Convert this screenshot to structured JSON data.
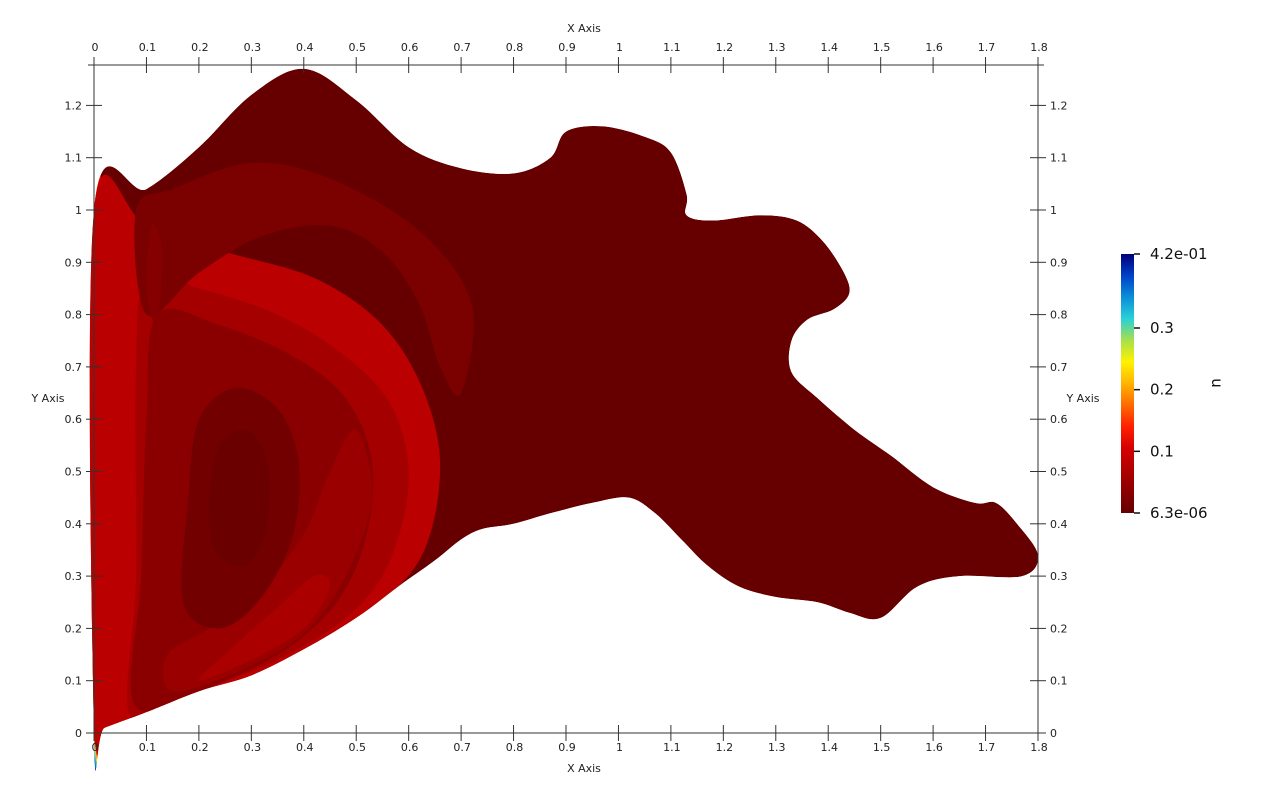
{
  "chart_data": {
    "type": "heatmap",
    "description_free": true,
    "x_axis": {
      "title": "X Axis",
      "range": [
        0,
        1.8
      ],
      "ticks": [
        {
          "v": 0,
          "label": "0"
        },
        {
          "v": 0.1,
          "label": "0.1"
        },
        {
          "v": 0.2,
          "label": "0.2"
        },
        {
          "v": 0.3,
          "label": "0.3"
        },
        {
          "v": 0.4,
          "label": "0.4"
        },
        {
          "v": 0.5,
          "label": "0.5"
        },
        {
          "v": 0.6,
          "label": "0.6"
        },
        {
          "v": 0.7,
          "label": "0.7"
        },
        {
          "v": 0.8,
          "label": "0.8"
        },
        {
          "v": 0.9,
          "label": "0.9"
        },
        {
          "v": 1.0,
          "label": "1"
        },
        {
          "v": 1.1,
          "label": "1.1"
        },
        {
          "v": 1.2,
          "label": "1.2"
        },
        {
          "v": 1.3,
          "label": "1.3"
        },
        {
          "v": 1.4,
          "label": "1.4"
        },
        {
          "v": 1.5,
          "label": "1.5"
        },
        {
          "v": 1.6,
          "label": "1.6"
        },
        {
          "v": 1.7,
          "label": "1.7"
        },
        {
          "v": 1.8,
          "label": "1.8"
        }
      ]
    },
    "y_axis": {
      "title": "Y Axis",
      "range": [
        0,
        1.27
      ],
      "ticks": [
        {
          "v": 0,
          "label": "0"
        },
        {
          "v": 0.1,
          "label": "0.1"
        },
        {
          "v": 0.2,
          "label": "0.2"
        },
        {
          "v": 0.3,
          "label": "0.3"
        },
        {
          "v": 0.4,
          "label": "0.4"
        },
        {
          "v": 0.5,
          "label": "0.5"
        },
        {
          "v": 0.6,
          "label": "0.6"
        },
        {
          "v": 0.7,
          "label": "0.7"
        },
        {
          "v": 0.8,
          "label": "0.8"
        },
        {
          "v": 0.9,
          "label": "0.9"
        },
        {
          "v": 1.0,
          "label": "1"
        },
        {
          "v": 1.1,
          "label": "1.1"
        },
        {
          "v": 1.2,
          "label": "1.2"
        }
      ]
    },
    "colorbar": {
      "title": "u",
      "min": 6.3e-06,
      "max": 0.42,
      "labels": [
        {
          "v": 0.42,
          "label": "4.2e-01"
        },
        {
          "v": 0.3,
          "label": "0.3"
        },
        {
          "v": 0.2,
          "label": "0.2"
        },
        {
          "v": 0.1,
          "label": "0.1"
        },
        {
          "v": 6.3e-06,
          "label": "6.3e-06"
        }
      ],
      "colors_low_to_high": [
        "#660000",
        "#8a0000",
        "#b00000",
        "#d40000",
        "#ff2000",
        "#ff6a00",
        "#ffb300",
        "#fff200",
        "#a6e04a",
        "#29d1d6",
        "#0a8fd8",
        "#0040c8",
        "#00007a"
      ]
    },
    "domain_boundary": [
      [
        0.0,
        1.0
      ],
      [
        0.1,
        1.04
      ],
      [
        0.2,
        1.12
      ],
      [
        0.3,
        1.22
      ],
      [
        0.4,
        1.27
      ],
      [
        0.5,
        1.21
      ],
      [
        0.6,
        1.12
      ],
      [
        0.7,
        1.08
      ],
      [
        0.8,
        1.07
      ],
      [
        0.87,
        1.1
      ],
      [
        0.9,
        1.15
      ],
      [
        0.97,
        1.16
      ],
      [
        1.05,
        1.14
      ],
      [
        1.1,
        1.11
      ],
      [
        1.13,
        1.03
      ],
      [
        1.13,
        0.99
      ],
      [
        1.18,
        0.98
      ],
      [
        1.27,
        0.99
      ],
      [
        1.34,
        0.98
      ],
      [
        1.39,
        0.94
      ],
      [
        1.43,
        0.88
      ],
      [
        1.44,
        0.84
      ],
      [
        1.41,
        0.81
      ],
      [
        1.36,
        0.79
      ],
      [
        1.33,
        0.75
      ],
      [
        1.33,
        0.69
      ],
      [
        1.38,
        0.64
      ],
      [
        1.45,
        0.58
      ],
      [
        1.52,
        0.53
      ],
      [
        1.6,
        0.47
      ],
      [
        1.68,
        0.44
      ],
      [
        1.72,
        0.44
      ],
      [
        1.76,
        0.4
      ],
      [
        1.8,
        0.34
      ],
      [
        1.77,
        0.3
      ],
      [
        1.65,
        0.3
      ],
      [
        1.57,
        0.28
      ],
      [
        1.5,
        0.22
      ],
      [
        1.44,
        0.23
      ],
      [
        1.38,
        0.25
      ],
      [
        1.3,
        0.26
      ],
      [
        1.23,
        0.28
      ],
      [
        1.17,
        0.32
      ],
      [
        1.12,
        0.37
      ],
      [
        1.07,
        0.42
      ],
      [
        1.02,
        0.45
      ],
      [
        0.95,
        0.44
      ],
      [
        0.87,
        0.42
      ],
      [
        0.8,
        0.4
      ],
      [
        0.74,
        0.39
      ],
      [
        0.7,
        0.37
      ],
      [
        0.65,
        0.33
      ],
      [
        0.58,
        0.28
      ],
      [
        0.5,
        0.22
      ],
      [
        0.4,
        0.16
      ],
      [
        0.3,
        0.11
      ],
      [
        0.2,
        0.08
      ],
      [
        0.1,
        0.04
      ],
      [
        0.02,
        0.01
      ],
      [
        0.0,
        0.0
      ]
    ],
    "field_levels": [
      {
        "value": 0.4,
        "region": [
          [
            0.0,
            0.0
          ],
          [
            0.01,
            0.0
          ],
          [
            0.015,
            0.3
          ],
          [
            0.012,
            0.6
          ],
          [
            0.008,
            0.9
          ],
          [
            0.004,
            1.0
          ],
          [
            0.0,
            1.0
          ]
        ]
      },
      {
        "value": 0.33,
        "region": [
          [
            0.0,
            0.0
          ],
          [
            0.02,
            0.02
          ],
          [
            0.022,
            0.3
          ],
          [
            0.02,
            0.6
          ],
          [
            0.012,
            0.9
          ],
          [
            0.006,
            1.0
          ],
          [
            0.0,
            1.0
          ]
        ]
      },
      {
        "value": 0.25,
        "region": [
          [
            0.0,
            0.0
          ],
          [
            0.04,
            0.02
          ],
          [
            0.038,
            0.3
          ],
          [
            0.034,
            0.6
          ],
          [
            0.025,
            0.9
          ],
          [
            0.012,
            0.995
          ],
          [
            0.0,
            1.0
          ]
        ]
      },
      {
        "value": 0.18,
        "region": [
          [
            0.0,
            0.0
          ],
          [
            0.06,
            0.02
          ],
          [
            0.055,
            0.3
          ],
          [
            0.05,
            0.6
          ],
          [
            0.04,
            0.9
          ],
          [
            0.02,
            0.99
          ],
          [
            0.0,
            1.0
          ]
        ]
      },
      {
        "value": 0.12,
        "region": [
          [
            0.0,
            0.0
          ],
          [
            0.08,
            0.03
          ],
          [
            0.075,
            0.3
          ],
          [
            0.07,
            0.6
          ],
          [
            0.055,
            0.88
          ],
          [
            0.03,
            0.99
          ],
          [
            0.0,
            1.0
          ]
        ]
      },
      {
        "value": 0.08,
        "region": [
          [
            0.0,
            0.0
          ],
          [
            0.1,
            0.04
          ],
          [
            0.3,
            0.11
          ],
          [
            0.5,
            0.22
          ],
          [
            0.62,
            0.33
          ],
          [
            0.66,
            0.5
          ],
          [
            0.63,
            0.65
          ],
          [
            0.55,
            0.78
          ],
          [
            0.42,
            0.87
          ],
          [
            0.25,
            0.92
          ],
          [
            0.1,
            0.97
          ],
          [
            0.0,
            1.0
          ]
        ]
      },
      {
        "value": 0.06,
        "region": [
          [
            0.07,
            0.03
          ],
          [
            0.2,
            0.08
          ],
          [
            0.35,
            0.14
          ],
          [
            0.48,
            0.22
          ],
          [
            0.56,
            0.32
          ],
          [
            0.6,
            0.48
          ],
          [
            0.57,
            0.62
          ],
          [
            0.48,
            0.72
          ],
          [
            0.35,
            0.8
          ],
          [
            0.2,
            0.85
          ],
          [
            0.1,
            0.87
          ],
          [
            0.08,
            0.7
          ],
          [
            0.08,
            0.3
          ]
        ]
      },
      {
        "value": 0.035,
        "region": [
          [
            0.08,
            0.05
          ],
          [
            0.25,
            0.1
          ],
          [
            0.38,
            0.17
          ],
          [
            0.47,
            0.26
          ],
          [
            0.52,
            0.38
          ],
          [
            0.53,
            0.52
          ],
          [
            0.48,
            0.64
          ],
          [
            0.38,
            0.72
          ],
          [
            0.24,
            0.78
          ],
          [
            0.12,
            0.8
          ],
          [
            0.1,
            0.6
          ],
          [
            0.09,
            0.3
          ]
        ]
      },
      {
        "value": 0.05,
        "region": [
          [
            0.15,
            0.08
          ],
          [
            0.28,
            0.12
          ],
          [
            0.4,
            0.19
          ],
          [
            0.48,
            0.3
          ],
          [
            0.53,
            0.45
          ],
          [
            0.5,
            0.58
          ],
          [
            0.45,
            0.5
          ],
          [
            0.4,
            0.38
          ],
          [
            0.32,
            0.28
          ],
          [
            0.22,
            0.2
          ],
          [
            0.14,
            0.15
          ]
        ]
      },
      {
        "value": 0.065,
        "region": [
          [
            0.2,
            0.1
          ],
          [
            0.3,
            0.14
          ],
          [
            0.4,
            0.2
          ],
          [
            0.45,
            0.28
          ],
          [
            0.42,
            0.3
          ],
          [
            0.35,
            0.24
          ],
          [
            0.26,
            0.16
          ]
        ]
      },
      {
        "value": 0.012,
        "region": [
          [
            0.17,
            0.25
          ],
          [
            0.24,
            0.2
          ],
          [
            0.32,
            0.26
          ],
          [
            0.38,
            0.38
          ],
          [
            0.39,
            0.52
          ],
          [
            0.35,
            0.62
          ],
          [
            0.27,
            0.66
          ],
          [
            0.2,
            0.6
          ],
          [
            0.18,
            0.45
          ]
        ]
      },
      {
        "value": 0.004,
        "region": [
          [
            0.23,
            0.35
          ],
          [
            0.29,
            0.32
          ],
          [
            0.33,
            0.4
          ],
          [
            0.33,
            0.52
          ],
          [
            0.29,
            0.58
          ],
          [
            0.24,
            0.55
          ],
          [
            0.22,
            0.45
          ]
        ]
      },
      {
        "value": 0.02,
        "region": [
          [
            0.1,
            0.8
          ],
          [
            0.2,
            0.88
          ],
          [
            0.32,
            0.95
          ],
          [
            0.45,
            0.97
          ],
          [
            0.55,
            0.92
          ],
          [
            0.62,
            0.82
          ],
          [
            0.66,
            0.7
          ],
          [
            0.7,
            0.65
          ],
          [
            0.72,
            0.82
          ],
          [
            0.62,
            0.96
          ],
          [
            0.45,
            1.06
          ],
          [
            0.3,
            1.09
          ],
          [
            0.15,
            1.04
          ],
          [
            0.08,
            1.0
          ]
        ]
      },
      {
        "value": 0.03,
        "region": [
          [
            0.12,
            0.78
          ],
          [
            0.13,
            0.92
          ],
          [
            0.11,
            0.97
          ],
          [
            0.1,
            0.85
          ]
        ]
      }
    ]
  }
}
